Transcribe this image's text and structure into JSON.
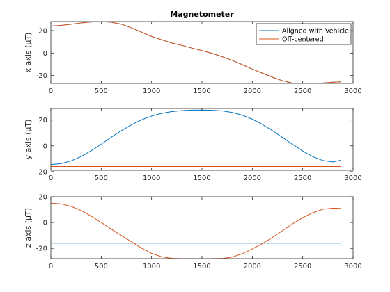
{
  "chart_data": [
    {
      "type": "line",
      "title": "Magnetometer",
      "xlabel": "",
      "ylabel": "x axis (μT)",
      "xlim": [
        0,
        3000
      ],
      "ylim": [
        -27,
        28
      ],
      "xticks": [
        0,
        500,
        1000,
        1500,
        2000,
        2500,
        3000
      ],
      "yticks": [
        -20,
        0,
        20
      ],
      "grid": false,
      "legend": "top-right",
      "series": [
        {
          "name": "Aligned with Vehicle",
          "color": "#0072BD",
          "x": [
            0,
            100,
            200,
            300,
            400,
            500,
            600,
            700,
            800,
            900,
            1000,
            1100,
            1200,
            1300,
            1400,
            1500,
            1600,
            1700,
            1800,
            1900,
            2000,
            2100,
            2200,
            2300,
            2400,
            2500,
            2600,
            2700,
            2800,
            2880
          ],
          "y": [
            24,
            24.6,
            25.6,
            26.8,
            27.6,
            28,
            27.4,
            25.7,
            22.4,
            18.6,
            14.8,
            11.8,
            9,
            6.8,
            4.4,
            2.2,
            -0.3,
            -3.2,
            -6.5,
            -10.3,
            -14.2,
            -17.9,
            -21.5,
            -24.6,
            -26.7,
            -27.3,
            -27.1,
            -26.6,
            -25.9,
            -25.6
          ]
        },
        {
          "name": "Off-centered",
          "color": "#D95319",
          "x": [
            0,
            100,
            200,
            300,
            400,
            500,
            600,
            700,
            800,
            900,
            1000,
            1100,
            1200,
            1300,
            1400,
            1500,
            1600,
            1700,
            1800,
            1900,
            2000,
            2100,
            2200,
            2300,
            2400,
            2500,
            2600,
            2700,
            2800,
            2880
          ],
          "y": [
            24,
            24.6,
            25.6,
            26.8,
            27.6,
            28,
            27.4,
            25.7,
            22.4,
            18.6,
            14.8,
            11.8,
            9,
            6.8,
            4.4,
            2.2,
            -0.3,
            -3.2,
            -6.5,
            -10.3,
            -14.2,
            -17.9,
            -21.5,
            -24.6,
            -26.7,
            -27.3,
            -27.1,
            -26.6,
            -25.9,
            -25.6
          ]
        }
      ]
    },
    {
      "type": "line",
      "title": "",
      "xlabel": "",
      "ylabel": "y axis (μT)",
      "xlim": [
        0,
        3000
      ],
      "ylim": [
        -19,
        29
      ],
      "xticks": [
        0,
        500,
        1000,
        1500,
        2000,
        2500,
        3000
      ],
      "yticks": [
        -20,
        0,
        20
      ],
      "ytick_labels": [
        "-20",
        "0",
        "20"
      ],
      "grid": false,
      "series": [
        {
          "name": "Aligned with Vehicle",
          "color": "#0072BD",
          "x": [
            0,
            100,
            200,
            300,
            400,
            500,
            600,
            700,
            800,
            900,
            1000,
            1100,
            1200,
            1300,
            1400,
            1500,
            1600,
            1700,
            1800,
            1900,
            2000,
            2100,
            2200,
            2300,
            2400,
            2500,
            2600,
            2700,
            2800,
            2880
          ],
          "y": [
            -14.5,
            -13.8,
            -11.7,
            -8.3,
            -3.8,
            1.3,
            6.7,
            11.8,
            16.3,
            20.2,
            23.1,
            25.2,
            26.6,
            27.3,
            27.7,
            27.8,
            27.6,
            27.1,
            25.9,
            23.8,
            20.7,
            16.6,
            11.8,
            6.5,
            1.1,
            -4,
            -8.4,
            -11.4,
            -12.5,
            -11.1
          ]
        },
        {
          "name": "Off-centered",
          "color": "#D95319",
          "x": [
            0,
            2880
          ],
          "y": [
            -16,
            -16
          ]
        }
      ]
    },
    {
      "type": "line",
      "title": "",
      "xlabel": "",
      "ylabel": "z axis (μT)",
      "xlim": [
        0,
        3000
      ],
      "ylim": [
        -28,
        20
      ],
      "xticks": [
        0,
        500,
        1000,
        1500,
        2000,
        2500,
        3000
      ],
      "yticks": [
        -20,
        0,
        20
      ],
      "grid": false,
      "series": [
        {
          "name": "Aligned with Vehicle",
          "color": "#0072BD",
          "x": [
            0,
            2880
          ],
          "y": [
            -16,
            -16
          ]
        },
        {
          "name": "Off-centered",
          "color": "#D95319",
          "x": [
            0,
            100,
            200,
            300,
            400,
            500,
            600,
            700,
            800,
            900,
            1000,
            1100,
            1200,
            1300,
            1400,
            1500,
            1600,
            1700,
            1800,
            1900,
            2000,
            2100,
            2200,
            2300,
            2400,
            2500,
            2600,
            2700,
            2800,
            2880
          ],
          "y": [
            15,
            14.5,
            12.5,
            9.3,
            5,
            0,
            -5.1,
            -10.1,
            -14.9,
            -19.8,
            -23.9,
            -26.6,
            -27.8,
            -28,
            -28,
            -28,
            -28,
            -27.9,
            -26.8,
            -24.2,
            -20.5,
            -16.3,
            -11.6,
            -6.3,
            -1,
            3.8,
            7.6,
            10.3,
            11.2,
            11
          ]
        }
      ]
    }
  ]
}
